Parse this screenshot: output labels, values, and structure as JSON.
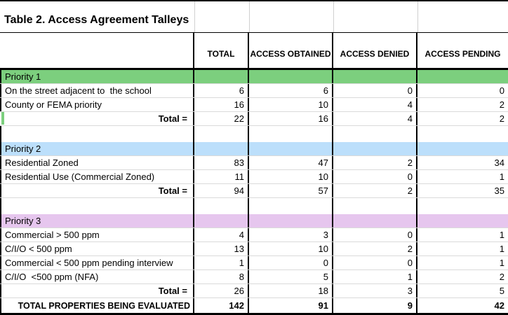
{
  "title": "Table 2. Access Agreement Talleys",
  "columns": {
    "total": "TOTAL",
    "obtained": "ACCESS OBTAINED",
    "denied": "ACCESS DENIED",
    "pending": "ACCESS PENDING"
  },
  "colors": {
    "priority1_fill": "#7ccf7e",
    "priority2_fill": "#bcdffb",
    "priority3_fill": "#e6c6ee",
    "gridline": "#dadada",
    "border": "#000000"
  },
  "sections": [
    {
      "name": "Priority 1",
      "rows": [
        {
          "label": "On the street adjacent to  the school",
          "values": [
            "6",
            "6",
            "0",
            "0"
          ]
        },
        {
          "label": "County or FEMA priority",
          "values": [
            "16",
            "10",
            "4",
            "2"
          ]
        },
        {
          "label": "Total =",
          "values": [
            "22",
            "16",
            "4",
            "2"
          ]
        }
      ]
    },
    {
      "name": "Priority 2",
      "rows": [
        {
          "label": "Residential Zoned",
          "values": [
            "83",
            "47",
            "2",
            "34"
          ]
        },
        {
          "label": "Residential Use (Commercial Zoned)",
          "values": [
            "11",
            "10",
            "0",
            "1"
          ]
        },
        {
          "label": "Total =",
          "values": [
            "94",
            "57",
            "2",
            "35"
          ]
        }
      ]
    },
    {
      "name": "Priority 3",
      "rows": [
        {
          "label": "Commercial > 500 ppm",
          "values": [
            "4",
            "3",
            "0",
            "1"
          ]
        },
        {
          "label": "C/I/O < 500 ppm",
          "values": [
            "13",
            "10",
            "2",
            "1"
          ]
        },
        {
          "label": "Commercial < 500 ppm pending interview",
          "values": [
            "1",
            "0",
            "0",
            "1"
          ]
        },
        {
          "label": "C/I/O  <500 ppm (NFA)",
          "values": [
            "8",
            "5",
            "1",
            "2"
          ]
        },
        {
          "label": "Total =",
          "values": [
            "26",
            "18",
            "3",
            "5"
          ]
        }
      ]
    }
  ],
  "grand_total": {
    "label": "TOTAL PROPERTIES BEING EVALUATED",
    "values": [
      "142",
      "91",
      "9",
      "42"
    ]
  }
}
